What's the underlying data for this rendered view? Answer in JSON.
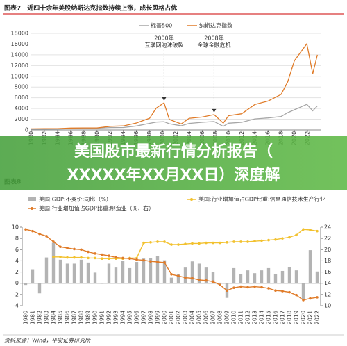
{
  "chart_data": [
    {
      "type": "line",
      "title": "图表7　近四十余年美股纳斯达克指数持续上涨，成长风格占优",
      "x": [
        1980,
        1982,
        1984,
        1986,
        1988,
        1990,
        1992,
        1994,
        1996,
        1998,
        1999,
        2000.2,
        2001,
        2002.8,
        2004,
        2006,
        2007.8,
        2009.2,
        2010,
        2012,
        2014,
        2016,
        2018,
        2019,
        2020,
        2021.9,
        2022.8,
        2023.5
      ],
      "series": [
        {
          "name": "标普500",
          "color": "#a6a6a6",
          "values": [
            136,
            140,
            167,
            242,
            277,
            330,
            435,
            459,
            740,
            1229,
            1469,
            1527,
            1148,
            777,
            1211,
            1418,
            1565,
            676,
            1257,
            1426,
            2058,
            2238,
            2506,
            3230,
            3756,
            4766,
            3577,
            4500
          ]
        },
        {
          "name": "纳斯达克指数",
          "color": "#e07b28",
          "values": [
            202,
            232,
            247,
            349,
            381,
            374,
            677,
            752,
            1291,
            2193,
            4069,
            5048,
            1950,
            1114,
            2175,
            2415,
            2859,
            1268,
            2652,
            3019,
            4736,
            5383,
            6635,
            8972,
            12888,
            16057,
            10466,
            14000
          ]
        }
      ],
      "xlim": [
        1980,
        2024
      ],
      "xticks": [
        1980,
        1982,
        1984,
        1986,
        1988,
        1990,
        1992,
        1994,
        1996,
        1998,
        2000,
        2002,
        2004,
        2006,
        2008,
        2010,
        2012,
        2014,
        2016,
        2018,
        2020,
        2022
      ],
      "ylim": [
        0,
        18000
      ],
      "yticks": [
        0,
        2000,
        4000,
        6000,
        8000,
        10000,
        12000,
        14000,
        16000,
        18000
      ],
      "annotations": [
        {
          "lines": [
            "2000年",
            "互联网泡沫破裂"
          ],
          "x": 2000.2,
          "y": 5048
        },
        {
          "lines": [
            "2008年",
            "全球金融危机"
          ],
          "x": 2007.8,
          "y": 2859
        }
      ]
    },
    {
      "type": "bar-line",
      "title": "图表8",
      "categories": [
        "1980",
        "1981",
        "1982",
        "1983",
        "1984",
        "1985",
        "1986",
        "1987",
        "1988",
        "1989",
        "1990",
        "1991",
        "1992",
        "1993",
        "1994",
        "1995",
        "1996",
        "1997",
        "1998",
        "1999",
        "2000",
        "2001",
        "2002",
        "2003",
        "2004",
        "2005",
        "2006",
        "2007",
        "2008",
        "2009",
        "2010",
        "2011",
        "2012",
        "2013",
        "2014",
        "2015",
        "2016",
        "2017",
        "2018",
        "2019",
        "2020",
        "2021",
        "2022"
      ],
      "series": [
        {
          "name": "美国:GDP:不变价:同比（%）",
          "color": "#b3b3b3",
          "kind": "bar",
          "values": [
            -0.3,
            2.5,
            -1.8,
            4.6,
            7.2,
            4.2,
            3.5,
            3.5,
            4.2,
            3.7,
            1.9,
            -0.1,
            3.5,
            2.8,
            4.0,
            2.7,
            3.8,
            4.4,
            4.5,
            4.8,
            4.1,
            1.0,
            1.7,
            2.8,
            3.9,
            3.5,
            2.8,
            2.0,
            0.1,
            -2.6,
            2.7,
            1.6,
            2.3,
            1.8,
            2.3,
            2.7,
            1.7,
            2.2,
            2.9,
            2.3,
            -2.8,
            5.9,
            2.1
          ]
        },
        {
          "name": "美国:行业增加值占GDP比重:信息通信技术生产行业",
          "color": "#f2c12e",
          "kind": "line",
          "axis": "y2",
          "values": [
            null,
            null,
            null,
            null,
            18.7,
            18.7,
            18.6,
            18.6,
            18.6,
            18.5,
            18.5,
            18.4,
            18.4,
            18.4,
            18.4,
            18.5,
            18.5,
            21.2,
            21.3,
            21.4,
            21.4,
            20.9,
            20.9,
            21.0,
            21.1,
            21.1,
            21.2,
            21.2,
            21.2,
            21.3,
            21.4,
            21.4,
            21.4,
            21.5,
            21.6,
            21.7,
            21.8,
            22.0,
            22.2,
            22.6,
            23.6,
            23.5,
            23.3
          ]
        },
        {
          "name": "美国:行业增加值占GDP比重:制造业（%，右）",
          "color": "#e07b28",
          "kind": "line",
          "axis": "y2",
          "values": [
            23.6,
            23.3,
            22.8,
            22.4,
            21.4,
            20.5,
            20.3,
            20.1,
            20.0,
            19.6,
            19.3,
            19.1,
            18.9,
            18.6,
            18.5,
            18.4,
            18.2,
            18.1,
            17.9,
            17.8,
            17.7,
            15.6,
            15.3,
            15.0,
            14.9,
            14.6,
            14.5,
            14.3,
            13.7,
            12.7,
            13.2,
            13.4,
            13.3,
            13.4,
            13.3,
            13.1,
            12.7,
            12.6,
            12.4,
            11.9,
            11.0,
            11.3,
            11.5
          ]
        }
      ],
      "ylim": [
        -4,
        10
      ],
      "yticks": [
        -4,
        -2,
        0,
        2,
        4,
        6,
        8,
        10
      ],
      "y2lim": [
        10,
        24
      ],
      "y2ticks": [
        10,
        12,
        14,
        16,
        18,
        20,
        22,
        24
      ],
      "source": "资料来源：Wind，平安证券研究所"
    }
  ],
  "banner": {
    "lines": [
      "美国股市最新行情分析报告（",
      "XXXXX年XX月XX日）深度解"
    ]
  }
}
